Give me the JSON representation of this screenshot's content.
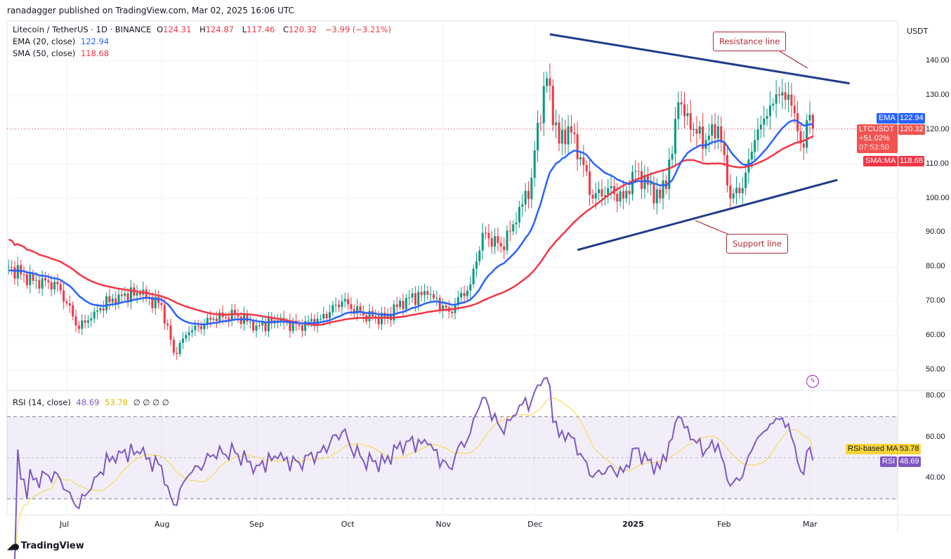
{
  "header": {
    "published": "ranadagger published on TradingView.com, Mar 02, 2025 16:06 UTC"
  },
  "legend": {
    "symbol": "Litecoin / TetherUS · 1D · BINANCE",
    "o_label": "O",
    "o": "124.31",
    "h_label": "H",
    "h": "124.87",
    "l_label": "L",
    "l": "117.46",
    "c_label": "C",
    "c": "120.32",
    "change": "−3.99 (−3.21%)",
    "ema_label": "EMA (20, close)",
    "ema": "122.94",
    "sma_label": "SMA (50, close)",
    "sma": "118.68",
    "rsi_label": "RSI (14, close)",
    "rsi": "48.69",
    "rsi_ma": "53.78",
    "rsi_extra": "∅ ∅ ∅ ∅"
  },
  "price_axis": {
    "currency": "USDT",
    "ticks": [
      "140.00",
      "130.00",
      "120.00",
      "110.00",
      "100.00",
      "90.00",
      "80.00",
      "70.00",
      "60.00",
      "50.00"
    ],
    "tags": {
      "ema_name": "EMA",
      "ema_value": "122.94",
      "symbol_name": "LTCUSDT",
      "last_price": "120.32",
      "change_pct": "+51.02%",
      "countdown": "07:53:50",
      "sma_name": "SMA:MA",
      "sma_value": "118.68"
    }
  },
  "rsi_axis": {
    "ticks": [
      "80.00",
      "60.00",
      "40.00"
    ],
    "tags": {
      "ma_name": "RSI-based MA",
      "ma_value": "53.78",
      "rsi_name": "RSI",
      "rsi_value": "48.69"
    }
  },
  "time_axis": {
    "labels": [
      "Jul",
      "Aug",
      "Sep",
      "Oct",
      "Nov",
      "Dec",
      "2025",
      "Feb",
      "Mar"
    ]
  },
  "annotations": {
    "resistance": "Resistance line",
    "support": "Support line"
  },
  "footer": {
    "brand": "TradingView"
  },
  "colors": {
    "up": "#089981",
    "down": "#f23645",
    "ema": "#2962ff",
    "sma": "#f23645",
    "rsi": "#7e57c2",
    "rsi_ma": "#f7d53a",
    "trendline": "#1e3a8a",
    "callout": "#b22833"
  },
  "chart_data": {
    "type": "candlestick",
    "symbol": "LTCUSDT",
    "interval": "1D",
    "ylim": [
      45,
      150
    ],
    "rsi_ylim": [
      20,
      85
    ],
    "rsi_levels": [
      70,
      30
    ],
    "x_ticks": {
      "Jul": "2024-07-01",
      "Aug": "2024-08-01",
      "Sep": "2024-09-01",
      "Oct": "2024-10-01",
      "Nov": "2024-11-01",
      "Dec": "2024-12-01",
      "2025": "2025-01-01",
      "Feb": "2025-02-01",
      "Mar": "2025-03-01"
    },
    "approx_closes": [
      [
        "2024-06-12",
        80
      ],
      [
        "2024-06-20",
        76
      ],
      [
        "2024-06-28",
        75
      ],
      [
        "2024-07-05",
        62
      ],
      [
        "2024-07-10",
        67
      ],
      [
        "2024-07-18",
        72
      ],
      [
        "2024-07-25",
        72
      ],
      [
        "2024-08-01",
        69
      ],
      [
        "2024-08-05",
        55
      ],
      [
        "2024-08-10",
        61
      ],
      [
        "2024-08-18",
        65
      ],
      [
        "2024-08-25",
        66
      ],
      [
        "2024-09-01",
        63
      ],
      [
        "2024-09-08",
        64
      ],
      [
        "2024-09-15",
        63
      ],
      [
        "2024-09-22",
        65
      ],
      [
        "2024-09-29",
        70
      ],
      [
        "2024-10-06",
        66
      ],
      [
        "2024-10-13",
        65
      ],
      [
        "2024-10-20",
        71
      ],
      [
        "2024-10-27",
        72
      ],
      [
        "2024-11-03",
        67
      ],
      [
        "2024-11-10",
        75
      ],
      [
        "2024-11-14",
        90
      ],
      [
        "2024-11-20",
        86
      ],
      [
        "2024-11-25",
        93
      ],
      [
        "2024-11-30",
        106
      ],
      [
        "2024-12-02",
        122
      ],
      [
        "2024-12-05",
        135
      ],
      [
        "2024-12-09",
        116
      ],
      [
        "2024-12-12",
        121
      ],
      [
        "2024-12-16",
        112
      ],
      [
        "2024-12-20",
        100
      ],
      [
        "2024-12-25",
        103
      ],
      [
        "2024-12-30",
        100
      ],
      [
        "2025-01-03",
        108
      ],
      [
        "2025-01-07",
        104
      ],
      [
        "2025-01-11",
        100
      ],
      [
        "2025-01-15",
        113
      ],
      [
        "2025-01-17",
        128
      ],
      [
        "2025-01-21",
        120
      ],
      [
        "2025-01-26",
        117
      ],
      [
        "2025-01-30",
        121
      ],
      [
        "2025-02-03",
        100
      ],
      [
        "2025-02-07",
        103
      ],
      [
        "2025-02-11",
        117
      ],
      [
        "2025-02-15",
        124
      ],
      [
        "2025-02-19",
        130
      ],
      [
        "2025-02-23",
        127
      ],
      [
        "2025-02-26",
        116
      ],
      [
        "2025-03-01",
        124.31
      ],
      [
        "2025-03-02",
        120.32
      ]
    ],
    "last": {
      "open": 124.31,
      "high": 124.87,
      "low": 117.46,
      "close": 120.32
    },
    "ema20_last": 122.94,
    "sma50_last": 118.68,
    "rsi14_last": 48.69,
    "rsi_ma_last": 53.78,
    "trendlines": [
      {
        "name": "resistance",
        "from": [
          "2024-12-06",
          147.8
        ],
        "to": [
          "2025-03-14",
          133.5
        ]
      },
      {
        "name": "support",
        "from": [
          "2024-12-15",
          85.0
        ],
        "to": [
          "2025-03-10",
          105.4
        ]
      }
    ]
  }
}
